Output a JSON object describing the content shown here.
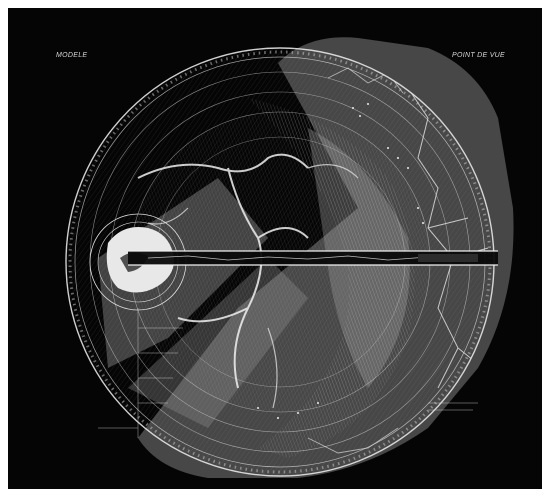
{
  "labels": {
    "top_left": "MODELE",
    "top_right": "POINT DE VUE"
  },
  "colors": {
    "background": "#050505",
    "frame": "#ffffff",
    "ink": "#e6e6e6",
    "overlay": "#8a8a8a"
  }
}
